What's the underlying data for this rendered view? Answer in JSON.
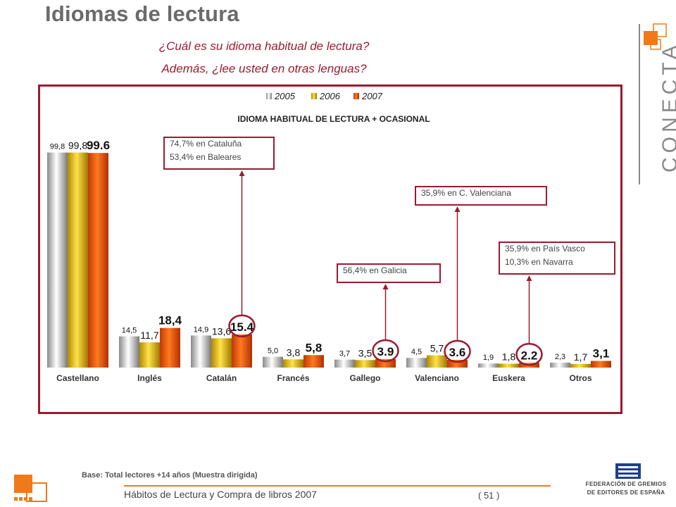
{
  "header": {
    "title": "Idiomas de lectura",
    "question1": "¿Cuál es su idioma habitual de lectura?",
    "question2": "Además, ¿lee usted en otras lenguas?"
  },
  "brand": {
    "name": "CONECTA"
  },
  "chart_data": {
    "type": "bar",
    "title": "IDIOMA HABITUAL DE LECTURA + OCASIONAL",
    "categories": [
      "Castellano",
      "Inglés",
      "Catalán",
      "Francés",
      "Gallego",
      "Valenciano",
      "Euskera",
      "Otros"
    ],
    "series": [
      {
        "name": "2005",
        "values": [
          99.8,
          14.5,
          14.9,
          5.0,
          3.7,
          4.5,
          1.9,
          2.3
        ],
        "labels": [
          "99,8",
          "14,5",
          "14,9",
          "5,0",
          "3,7",
          "4,5",
          "1,9",
          "2,3"
        ],
        "color": "#b8b8b8"
      },
      {
        "name": "2006",
        "values": [
          99.8,
          11.7,
          13.6,
          3.8,
          3.5,
          5.7,
          1.8,
          1.7
        ],
        "labels": [
          "99,8",
          "11,7",
          "13,6",
          "3,8",
          "3,5",
          "5,7",
          "1,8",
          "1,7"
        ],
        "color": "#d4a800"
      },
      {
        "name": "2007",
        "values": [
          99.6,
          18.4,
          15.4,
          5.8,
          3.9,
          3.6,
          2.2,
          3.1
        ],
        "labels": [
          "99.6",
          "18,4",
          "15.4",
          "5,8",
          "3.9",
          "3.6",
          "2.2",
          "3,1"
        ],
        "color": "#d24a00"
      }
    ],
    "legend_position": "top-center",
    "grid": false,
    "ylim": [
      0,
      100
    ],
    "highlighted": [
      "Catalán",
      "Gallego",
      "Valenciano",
      "Euskera"
    ],
    "annotations": [
      {
        "category": "Catalán",
        "lines": [
          "74,7% en Cataluña",
          "53,4% en Baleares"
        ]
      },
      {
        "category": "Gallego",
        "lines": [
          "56,4% en Galicia"
        ]
      },
      {
        "category": "Valenciano",
        "lines": [
          "35,9% en C. Valenciana"
        ]
      },
      {
        "category": "Euskera",
        "lines": [
          "35,9% en País Vasco",
          "10,3% en Navarra"
        ]
      }
    ]
  },
  "footer": {
    "base": "Base:  Total lectores +14 años (Muestra dirigida)",
    "title": "Hábitos de Lectura y Compra de libros 2007",
    "page": "( 51 )",
    "publisher_line1": "FEDERACIÓN DE GREMIOS",
    "publisher_line2": "DE EDITORES DE ESPAÑA"
  },
  "colors": {
    "accent": "#9a1b30",
    "orange": "#f07a1a"
  }
}
